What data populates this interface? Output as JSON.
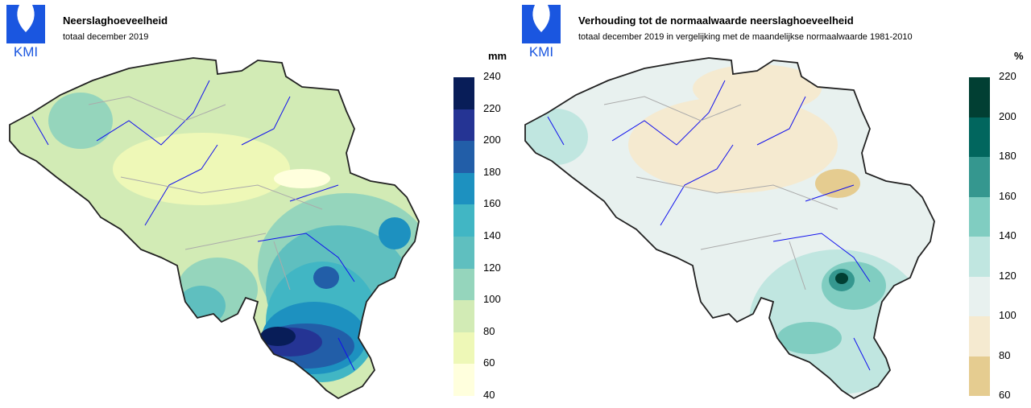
{
  "logo_text": "KMI",
  "left": {
    "title": "Neerslaghoeveelheid",
    "subtitle": "totaal december 2019",
    "unit": "mm",
    "legend_ticks": [
      "240",
      "220",
      "200",
      "180",
      "160",
      "140",
      "120",
      "100",
      "80",
      "60",
      "40"
    ],
    "legend_colors": [
      "#081d58",
      "#253494",
      "#225ea8",
      "#1d91c0",
      "#41b6c4",
      "#5fbfbf",
      "#95d5bc",
      "#d2ebb5",
      "#eef8b7",
      "#ffffdd"
    ]
  },
  "right": {
    "title": "Verhouding tot de normaalwaarde neerslaghoeveelheid",
    "subtitle": "totaal december 2019 in vergelijking met de maandelijkse normaalwaarde 1981-2010",
    "unit": "%",
    "legend_ticks": [
      "220",
      "200",
      "180",
      "160",
      "140",
      "120",
      "100",
      "80",
      "60"
    ],
    "legend_colors": [
      "#013f33",
      "#01665e",
      "#35978f",
      "#80cdc1",
      "#c0e6e0",
      "#e8f1ef",
      "#f5ead0",
      "#e5cc90"
    ]
  }
}
